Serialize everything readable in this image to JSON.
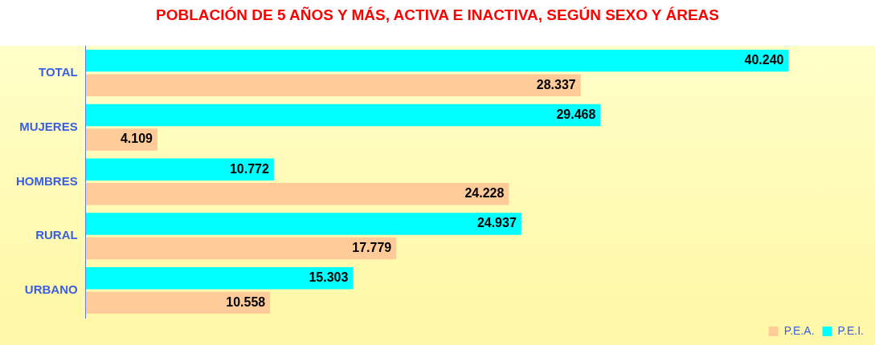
{
  "chart_data": {
    "type": "bar",
    "orientation": "horizontal",
    "title": "POBLACIÓN DE 5 AÑOS Y MÁS, ACTIVA E INACTIVA, SEGÚN SEXO Y ÁREAS",
    "categories": [
      "TOTAL",
      "MUJERES",
      "HOMBRES",
      "RURAL",
      "URBANO"
    ],
    "series": [
      {
        "name": "P.E.I.",
        "color": "#00ffff",
        "values": [
          40240,
          29468,
          10772,
          24937,
          15303
        ],
        "value_labels": [
          "40.240",
          "29.468",
          "10.772",
          "24.937",
          "15.303"
        ]
      },
      {
        "name": "P.E.A.",
        "color": "#ffcc99",
        "values": [
          28337,
          4109,
          24228,
          17779,
          10558
        ],
        "value_labels": [
          "28.337",
          "4.109",
          "24.228",
          "17.779",
          "10.558"
        ]
      }
    ],
    "legend": "bottom right"
  }
}
